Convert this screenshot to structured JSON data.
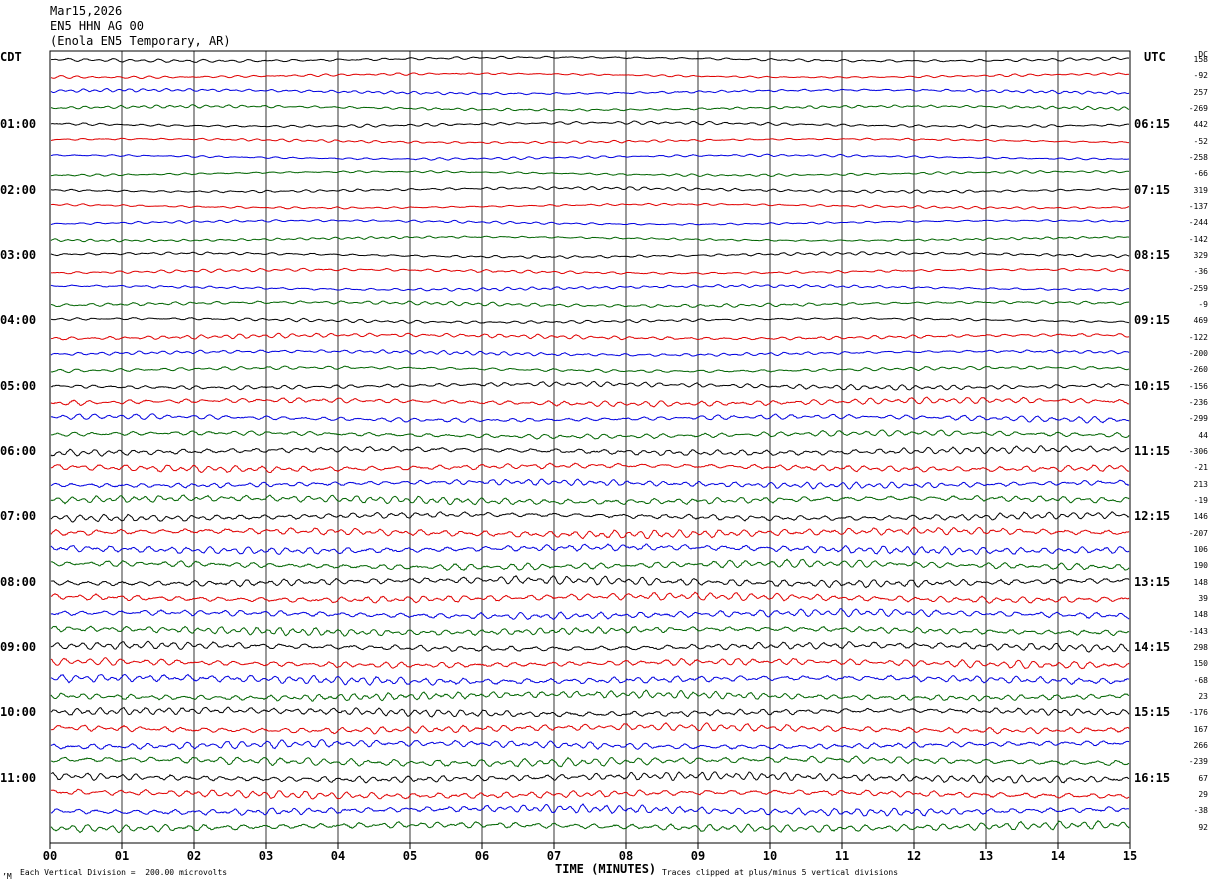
{
  "header": {
    "date": "Mar15,2026",
    "channel": "EN5 HHN AG 00",
    "station": "(Enola EN5 Temporary, AR)"
  },
  "left_tz": "CDT",
  "right_tz": "UTC",
  "dc_label": "DC",
  "footer": {
    "scale_note": "Each Vertical Division =  200.00 microvolts",
    "x_axis_title": "TIME (MINUTES)",
    "clip_note": "Traces clipped at plus/minus 5 vertical divisions",
    "corner_mark": "’M"
  },
  "colors": {
    "trace_cycle": [
      "#000000",
      "#e00000",
      "#0000e0",
      "#006400"
    ],
    "grid": "#000000"
  },
  "chart_data": {
    "type": "line",
    "x_range_minutes": [
      0,
      15
    ],
    "x_ticks": [
      "00",
      "01",
      "02",
      "03",
      "04",
      "05",
      "06",
      "07",
      "08",
      "09",
      "10",
      "11",
      "12",
      "13",
      "14",
      "15"
    ],
    "left_hour_labels": [
      "01:00",
      "02:00",
      "03:00",
      "04:00",
      "05:00",
      "06:00",
      "07:00",
      "08:00",
      "09:00",
      "10:00",
      "11:00"
    ],
    "right_hour_labels": [
      "06:15",
      "07:15",
      "08:15",
      "09:15",
      "10:15",
      "11:15",
      "12:15",
      "13:15",
      "14:15",
      "15:15",
      "16:15"
    ],
    "dc_offsets": [
      "158",
      "-92",
      "257",
      "-269",
      "442",
      "-52",
      "-258",
      "-66",
      "319",
      "-137",
      "-244",
      "-142",
      "329",
      "-36",
      "-259",
      "-9",
      "469",
      "-122",
      "-200",
      "-260",
      "-156",
      "-236",
      "-299",
      "44",
      "-306",
      "-21",
      "213",
      "-19",
      "146",
      "-207",
      "106",
      "190",
      "148",
      "39",
      "148",
      "-143",
      "298",
      "150",
      "-68",
      "23",
      "-176",
      "167",
      "266",
      "-239",
      "67",
      "29",
      "-38",
      "92"
    ],
    "trace_activity": [
      0.5,
      0.4,
      0.5,
      0.5,
      0.5,
      0.4,
      0.4,
      0.4,
      0.5,
      0.4,
      0.4,
      0.4,
      0.5,
      0.5,
      0.5,
      0.6,
      0.5,
      0.7,
      0.6,
      0.6,
      0.8,
      1.0,
      0.9,
      0.9,
      1.1,
      1.1,
      1.0,
      1.2,
      1.1,
      1.3,
      1.3,
      1.2,
      1.3,
      1.2,
      1.2,
      1.2,
      1.2,
      1.2,
      1.3,
      1.2,
      1.2,
      1.2,
      1.2,
      1.3,
      1.3,
      1.2,
      1.3,
      1.3
    ],
    "trace_count": 48,
    "traces_per_hour": 4
  }
}
